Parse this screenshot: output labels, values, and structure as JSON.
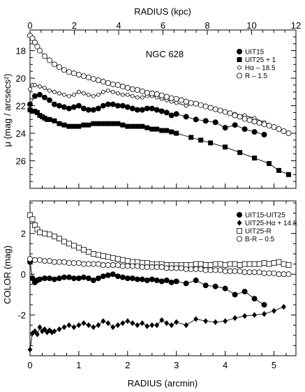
{
  "chart_data": [
    {
      "type": "line",
      "x_top": {
        "label": "RADIUS (kpc)",
        "ticks": [
          "0",
          "2",
          "4",
          "6",
          "8",
          "10",
          "12"
        ],
        "range": [
          0,
          12
        ]
      },
      "x": {
        "range": [
          0,
          5.45
        ]
      },
      "ylabel": "μ (mag / arcsecs²)",
      "ylim": [
        28,
        16.5
      ],
      "y_inverted": true,
      "y_ticks": [
        "18",
        "20",
        "22",
        "24",
        "26"
      ],
      "annotation": "NGC 628",
      "legend_position": "top-right",
      "series": [
        {
          "name": "UIT15",
          "marker": "filled-circle",
          "line": true,
          "x": [
            0,
            0.1,
            0.2,
            0.3,
            0.4,
            0.5,
            0.6,
            0.7,
            0.8,
            0.9,
            1.0,
            1.1,
            1.2,
            1.3,
            1.4,
            1.5,
            1.6,
            1.7,
            1.8,
            1.9,
            2.0,
            2.1,
            2.2,
            2.3,
            2.4,
            2.5,
            2.6,
            2.7,
            2.8,
            2.9,
            3.0,
            3.2,
            3.4,
            3.6,
            3.8,
            4.0,
            4.2,
            4.4,
            4.6,
            4.8
          ],
          "y": [
            21.9,
            21.3,
            21.2,
            21.4,
            21.6,
            21.9,
            22.0,
            22.1,
            22.2,
            22.1,
            22.0,
            22.2,
            22.3,
            22.3,
            22.2,
            22.0,
            21.9,
            21.9,
            22.0,
            22.0,
            22.1,
            22.2,
            22.3,
            22.3,
            22.2,
            22.2,
            22.3,
            22.4,
            22.5,
            22.7,
            22.6,
            22.8,
            23.0,
            23.1,
            23.2,
            23.6,
            23.4,
            23.7,
            23.9,
            24.1
          ]
        },
        {
          "name": "UIT25 + 1",
          "marker": "filled-square",
          "line": true,
          "x": [
            0,
            0.05,
            0.1,
            0.15,
            0.2,
            0.25,
            0.3,
            0.35,
            0.4,
            0.5,
            0.6,
            0.7,
            0.8,
            0.9,
            1.0,
            1.1,
            1.2,
            1.3,
            1.4,
            1.5,
            1.6,
            1.7,
            1.8,
            1.9,
            2.0,
            2.1,
            2.2,
            2.3,
            2.4,
            2.5,
            2.6,
            2.7,
            2.8,
            2.9,
            3.0,
            3.3,
            3.5,
            3.7,
            4.0,
            4.3,
            4.6,
            4.9,
            5.1,
            5.3
          ],
          "y": [
            22.3,
            22.4,
            22.4,
            22.5,
            22.7,
            22.8,
            22.9,
            23.0,
            23.0,
            23.1,
            23.3,
            23.4,
            23.5,
            23.5,
            23.5,
            23.4,
            23.4,
            23.3,
            23.3,
            23.3,
            23.3,
            23.3,
            23.3,
            23.4,
            23.5,
            23.5,
            23.5,
            23.5,
            23.6,
            23.7,
            23.7,
            23.8,
            23.8,
            23.9,
            24.0,
            24.3,
            24.5,
            24.7,
            25.0,
            25.4,
            25.8,
            26.2,
            26.7,
            27.0
          ]
        },
        {
          "name": "Hα – 18.5",
          "marker": "small-open-circle",
          "line": true,
          "x": [
            0,
            0.05,
            0.1,
            0.2,
            0.3,
            0.4,
            0.5,
            0.6,
            0.7,
            0.8,
            0.9,
            1.0,
            1.1,
            1.2,
            1.3,
            1.4,
            1.5,
            1.6,
            1.7,
            1.8,
            1.9,
            2.0,
            2.1,
            2.2,
            2.3,
            2.4,
            2.5,
            2.6,
            2.7,
            2.8,
            2.9,
            3.0,
            3.2,
            3.4,
            3.6,
            3.8,
            4.0,
            4.2,
            4.4,
            4.6,
            4.8,
            5.0,
            5.2
          ],
          "y": [
            20.8,
            20.5,
            20.5,
            20.6,
            20.7,
            20.9,
            21.0,
            21.1,
            21.2,
            21.3,
            21.2,
            21.0,
            21.1,
            21.2,
            21.3,
            21.2,
            21.0,
            20.9,
            21.0,
            21.1,
            21.2,
            21.2,
            21.3,
            21.4,
            21.4,
            21.3,
            21.3,
            21.4,
            21.5,
            21.6,
            21.7,
            21.8,
            22.0,
            21.9,
            22.0,
            22.2,
            22.4,
            22.6,
            22.7,
            22.9,
            23.2,
            23.5,
            23.9
          ]
        },
        {
          "name": "R – 1.5",
          "marker": "open-circle",
          "line": true,
          "x": [
            0,
            0.05,
            0.1,
            0.15,
            0.2,
            0.3,
            0.4,
            0.5,
            0.6,
            0.7,
            0.8,
            0.9,
            1.0,
            1.1,
            1.2,
            1.3,
            1.4,
            1.5,
            1.6,
            1.7,
            1.8,
            1.9,
            2.0,
            2.1,
            2.2,
            2.3,
            2.4,
            2.5,
            2.6,
            2.7,
            2.8,
            2.9,
            3.0,
            3.1,
            3.2,
            3.3,
            3.4,
            3.5,
            3.6,
            3.7,
            3.8,
            3.9,
            4.0,
            4.1,
            4.2,
            4.3,
            4.4,
            4.5,
            4.6,
            4.7,
            4.8,
            4.9,
            5.0,
            5.1,
            5.2,
            5.3
          ],
          "y": [
            16.9,
            17.1,
            17.4,
            17.7,
            18.0,
            18.4,
            18.7,
            19.0,
            19.2,
            19.4,
            19.55,
            19.65,
            19.75,
            19.85,
            19.95,
            20.05,
            20.15,
            20.25,
            20.35,
            20.45,
            20.5,
            20.6,
            20.7,
            20.8,
            20.85,
            20.95,
            21.05,
            21.1,
            21.15,
            21.25,
            21.35,
            21.45,
            21.5,
            21.6,
            21.7,
            21.8,
            21.85,
            21.95,
            22.05,
            22.15,
            22.25,
            22.35,
            22.45,
            22.55,
            22.7,
            22.8,
            22.95,
            23.05,
            23.15,
            23.25,
            23.35,
            23.45,
            23.55,
            23.7,
            23.85,
            24.0
          ]
        }
      ]
    },
    {
      "type": "line",
      "xlabel": "RADIUS (arcmin)",
      "x": {
        "range": [
          0,
          5.45
        ],
        "ticks": [
          "0",
          "1",
          "2",
          "3",
          "4",
          "5"
        ]
      },
      "ylabel": "COLOR (mag)",
      "ylim": [
        -4,
        3.6
      ],
      "y_ticks": [
        "2",
        "0",
        "-2"
      ],
      "legend_position": "top-right",
      "series": [
        {
          "name": "UIT15-UIT25",
          "marker": "filled-circle",
          "line": true,
          "x": [
            0,
            0.05,
            0.1,
            0.15,
            0.2,
            0.3,
            0.4,
            0.5,
            0.6,
            0.7,
            0.8,
            0.9,
            1.0,
            1.1,
            1.2,
            1.3,
            1.4,
            1.5,
            1.6,
            1.7,
            1.8,
            1.9,
            2.0,
            2.1,
            2.2,
            2.3,
            2.4,
            2.5,
            2.6,
            2.7,
            2.8,
            2.9,
            3.0,
            3.2,
            3.4,
            3.6,
            3.8,
            4.0,
            4.2,
            4.4,
            4.6,
            4.8
          ],
          "y": [
            0.6,
            -0.2,
            -0.4,
            -0.3,
            -0.25,
            -0.2,
            -0.2,
            -0.25,
            -0.2,
            -0.15,
            -0.15,
            -0.2,
            -0.2,
            -0.15,
            -0.2,
            -0.3,
            -0.2,
            -0.1,
            -0.05,
            0.0,
            -0.1,
            -0.15,
            -0.2,
            -0.2,
            -0.25,
            -0.25,
            -0.3,
            -0.25,
            -0.3,
            -0.35,
            -0.3,
            -0.4,
            -0.35,
            -0.45,
            -0.3,
            -0.55,
            -0.6,
            -0.7,
            -1.0,
            -0.85,
            -1.2,
            -1.5
          ]
        },
        {
          "name": "UIT25-Hα + 14.8",
          "marker": "filled-diamond",
          "line": true,
          "x": [
            0,
            0.05,
            0.1,
            0.15,
            0.2,
            0.25,
            0.3,
            0.35,
            0.4,
            0.45,
            0.5,
            0.6,
            0.7,
            0.8,
            0.9,
            1.0,
            1.1,
            1.2,
            1.3,
            1.4,
            1.5,
            1.6,
            1.7,
            1.8,
            1.9,
            2.0,
            2.1,
            2.2,
            2.3,
            2.4,
            2.5,
            2.6,
            2.7,
            2.8,
            2.9,
            3.0,
            3.2,
            3.4,
            3.6,
            3.8,
            4.0,
            4.2,
            4.4,
            4.6,
            4.8,
            5.0,
            5.2
          ],
          "y": [
            -3.7,
            -2.9,
            -2.8,
            -2.95,
            -2.6,
            -2.8,
            -2.7,
            -2.85,
            -2.75,
            -2.85,
            -2.8,
            -2.7,
            -2.6,
            -2.5,
            -2.6,
            -2.5,
            -2.4,
            -2.5,
            -2.6,
            -2.5,
            -2.3,
            -2.4,
            -2.6,
            -2.5,
            -2.4,
            -2.3,
            -2.4,
            -2.5,
            -2.4,
            -2.55,
            -2.5,
            -2.5,
            -2.25,
            -2.4,
            -2.5,
            -2.35,
            -2.5,
            -2.2,
            -2.3,
            -2.35,
            -2.3,
            -2.15,
            -2.05,
            -2.0,
            -1.95,
            -1.8,
            -1.6
          ]
        },
        {
          "name": "UIT25-R",
          "marker": "open-square",
          "line": true,
          "x": [
            0,
            0.05,
            0.1,
            0.15,
            0.2,
            0.3,
            0.4,
            0.5,
            0.6,
            0.7,
            0.8,
            0.9,
            1.0,
            1.1,
            1.2,
            1.3,
            1.4,
            1.5,
            1.6,
            1.7,
            1.8,
            1.9,
            2.0,
            2.1,
            2.2,
            2.3,
            2.4,
            2.5,
            2.6,
            2.7,
            2.8,
            2.9,
            3.0,
            3.1,
            3.2,
            3.3,
            3.4,
            3.5,
            3.6,
            3.7,
            3.8,
            3.9,
            4.0,
            4.1,
            4.2,
            4.3,
            4.4,
            4.5,
            4.6,
            4.7,
            4.8,
            4.9,
            5.0,
            5.1,
            5.2,
            5.3
          ],
          "y": [
            2.9,
            2.7,
            2.4,
            2.2,
            2.05,
            2.0,
            1.95,
            1.85,
            1.75,
            1.6,
            1.5,
            1.4,
            1.3,
            1.2,
            1.1,
            1.0,
            0.95,
            0.9,
            0.85,
            0.8,
            0.75,
            0.7,
            0.65,
            0.6,
            0.6,
            0.55,
            0.55,
            0.5,
            0.5,
            0.5,
            0.45,
            0.45,
            0.45,
            0.45,
            0.45,
            0.45,
            0.5,
            0.5,
            0.45,
            0.45,
            0.5,
            0.5,
            0.45,
            0.5,
            0.5,
            0.45,
            0.5,
            0.5,
            0.5,
            0.5,
            0.55,
            0.5,
            0.55,
            0.6,
            0.5,
            0.45
          ]
        },
        {
          "name": "B-R – 0.5",
          "marker": "open-circle",
          "line": true,
          "x": [
            0,
            0.1,
            0.2,
            0.3,
            0.4,
            0.5,
            0.6,
            0.7,
            0.8,
            0.9,
            1.0,
            1.1,
            1.2,
            1.3,
            1.4,
            1.5,
            1.6,
            1.7,
            1.8,
            1.9,
            2.0,
            2.1,
            2.2,
            2.3,
            2.4,
            2.5,
            2.6,
            2.7,
            2.8,
            2.9,
            3.0,
            3.1,
            3.2,
            3.3,
            3.4,
            3.5,
            3.6,
            3.7,
            3.8,
            3.9,
            4.0,
            4.1,
            4.2,
            4.3,
            4.4,
            4.5,
            4.6,
            4.7,
            4.8,
            4.9,
            5.0,
            5.1,
            5.2,
            5.3
          ],
          "y": [
            0.75,
            0.7,
            0.7,
            0.65,
            0.65,
            0.6,
            0.6,
            0.6,
            0.55,
            0.55,
            0.55,
            0.5,
            0.5,
            0.5,
            0.5,
            0.45,
            0.45,
            0.45,
            0.45,
            0.4,
            0.4,
            0.4,
            0.4,
            0.35,
            0.35,
            0.35,
            0.35,
            0.35,
            0.3,
            0.3,
            0.3,
            0.3,
            0.25,
            0.25,
            0.25,
            0.25,
            0.2,
            0.2,
            0.2,
            0.2,
            0.15,
            0.15,
            0.15,
            0.15,
            0.1,
            0.1,
            0.1,
            0.1,
            0.05,
            0.05,
            0.05,
            0.0,
            0.0,
            0.0
          ]
        }
      ]
    }
  ]
}
